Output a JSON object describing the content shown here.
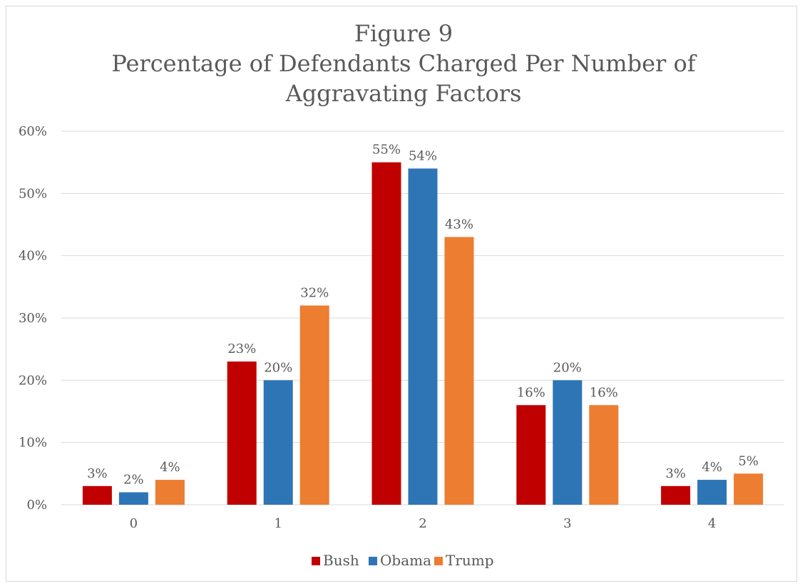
{
  "chart_data": {
    "type": "bar",
    "title_lines": [
      "Figure 9",
      "Percentage of Defendants Charged Per Number of",
      "Aggravating Factors"
    ],
    "categories": [
      "0",
      "1",
      "2",
      "3",
      "4"
    ],
    "series": [
      {
        "name": "Bush",
        "color": "#c00000",
        "values": [
          3,
          23,
          55,
          16,
          3
        ],
        "labels": [
          "3%",
          "23%",
          "55%",
          "16%",
          "3%"
        ]
      },
      {
        "name": "Obama",
        "color": "#2e75b6",
        "values": [
          2,
          20,
          54,
          20,
          4
        ],
        "labels": [
          "2%",
          "20%",
          "54%",
          "20%",
          "4%"
        ]
      },
      {
        "name": "Trump",
        "color": "#ed7d31",
        "values": [
          4,
          32,
          43,
          16,
          5
        ],
        "labels": [
          "4%",
          "32%",
          "43%",
          "16%",
          "5%"
        ]
      }
    ],
    "yticks": [
      "0%",
      "10%",
      "20%",
      "30%",
      "40%",
      "50%",
      "60%"
    ],
    "ylim": [
      0,
      60
    ],
    "xlabel": "",
    "ylabel": "",
    "grid": true,
    "legend": "bottom-center"
  }
}
